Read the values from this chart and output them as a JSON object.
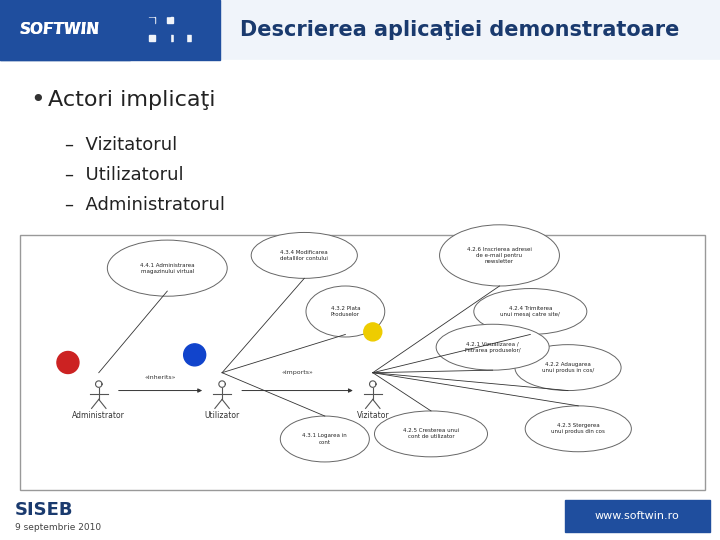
{
  "title": "Descrierea aplicaţiei demonstratoare",
  "title_color": "#1a3a6e",
  "title_fontsize": 15,
  "header_bg_color": "#1f4e9e",
  "header_logo_text": "SOFTWIN",
  "bullet_main": "Actori implicaţi",
  "bullet_main_fontsize": 16,
  "sub_bullets": [
    "–  Vizitatorul",
    "–  Utilizatorul",
    "–  Administratorul"
  ],
  "sub_bullet_fontsize": 13,
  "siseb_text": "SISEB",
  "siseb_color": "#1a3a6e",
  "date_text": "9 septembrie 2010",
  "date_color": "#444444",
  "website_text": "www.softwin.ro",
  "website_bg_color": "#1f4e9e",
  "website_text_color": "#ffffff",
  "slide_bg_color": "#f0f4fa",
  "content_bg_color": "#ffffff",
  "diagram_border_color": "#999999",
  "diagram_bg_color": "#ffffff"
}
